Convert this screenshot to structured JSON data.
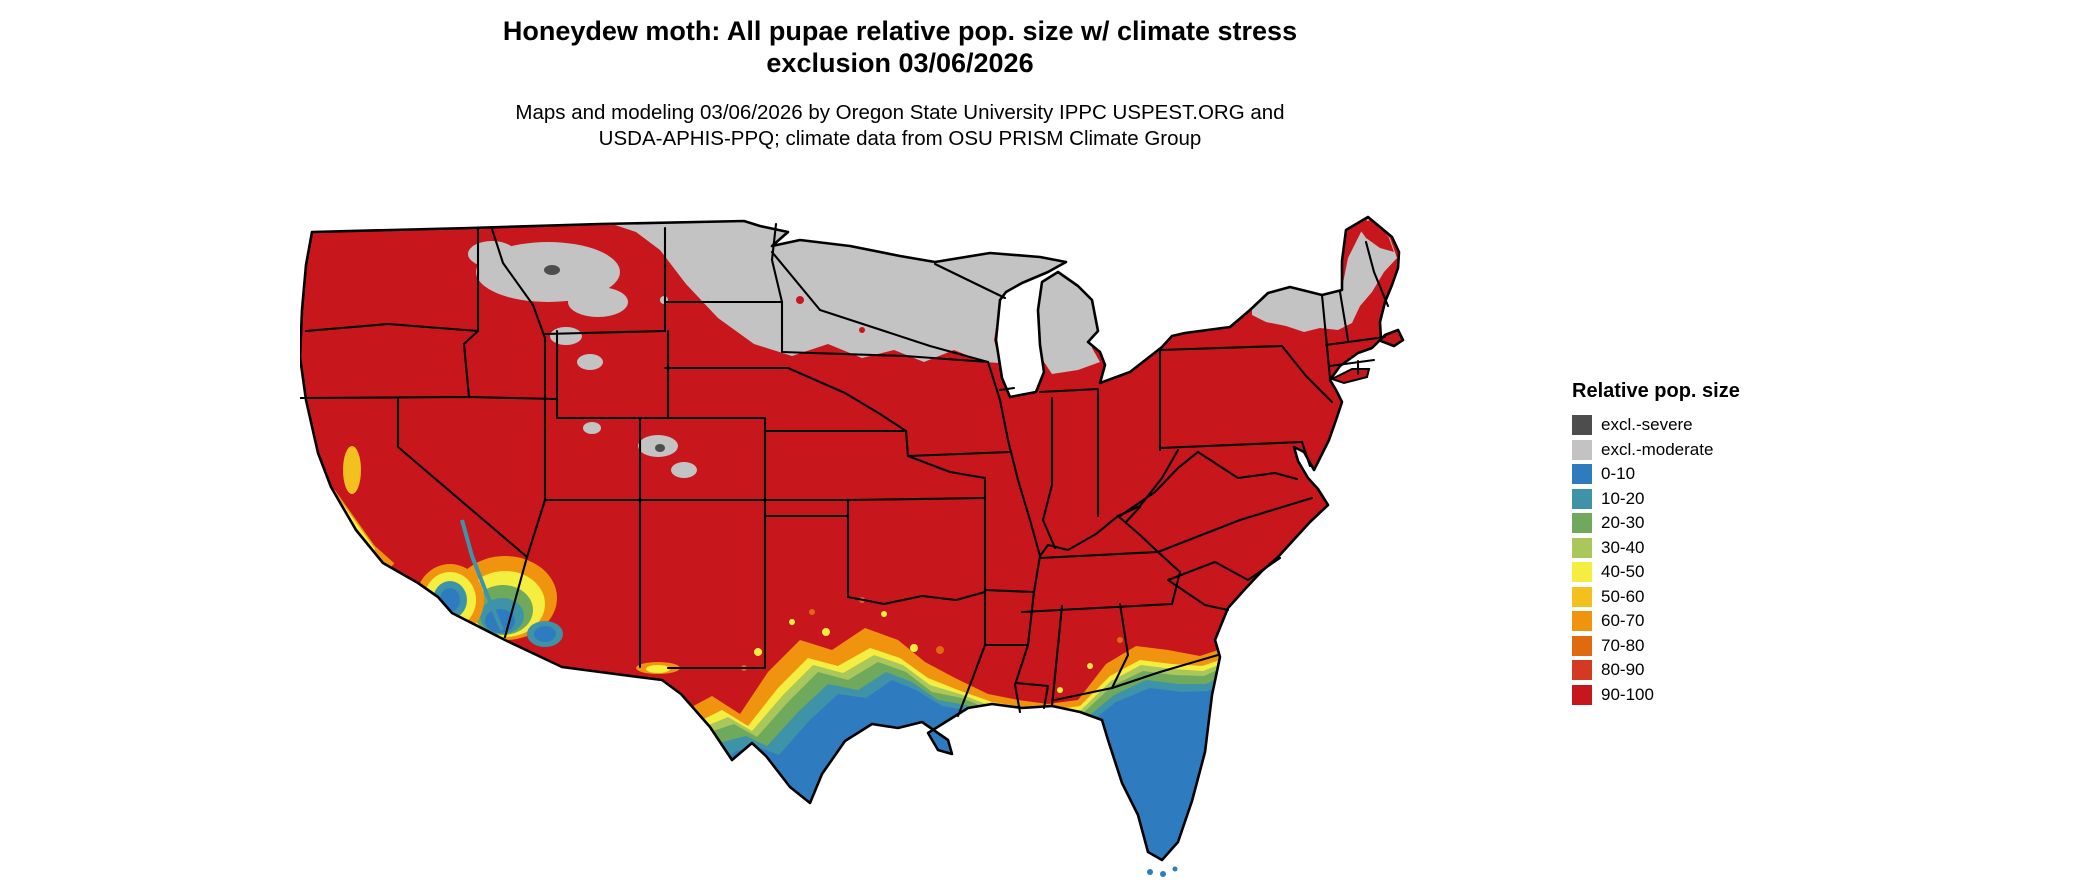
{
  "title": {
    "line1": "Honeydew moth: All pupae relative pop. size w/ climate stress",
    "line2": "exclusion 03/06/2026"
  },
  "subtitle": {
    "line1": "Maps and modeling 03/06/2026 by Oregon State University IPPC USPEST.ORG and",
    "line2": "USDA-APHIS-PPQ; climate data from OSU PRISM Climate Group"
  },
  "legend": {
    "title": "Relative pop. size",
    "items": [
      {
        "label": "excl.-severe",
        "color": "#4D4D4D"
      },
      {
        "label": "excl.-moderate",
        "color": "#C3C3C3"
      },
      {
        "label": "0-10",
        "color": "#2E7CBF"
      },
      {
        "label": "10-20",
        "color": "#3F93A8"
      },
      {
        "label": "20-30",
        "color": "#6FA95C"
      },
      {
        "label": "30-40",
        "color": "#A9C75A"
      },
      {
        "label": "40-50",
        "color": "#F4EE41"
      },
      {
        "label": "50-60",
        "color": "#F3C01F"
      },
      {
        "label": "60-70",
        "color": "#F0940F"
      },
      {
        "label": "70-80",
        "color": "#DF6A10"
      },
      {
        "label": "80-90",
        "color": "#D43A22"
      },
      {
        "label": "90-100",
        "color": "#C8161D"
      }
    ]
  }
}
